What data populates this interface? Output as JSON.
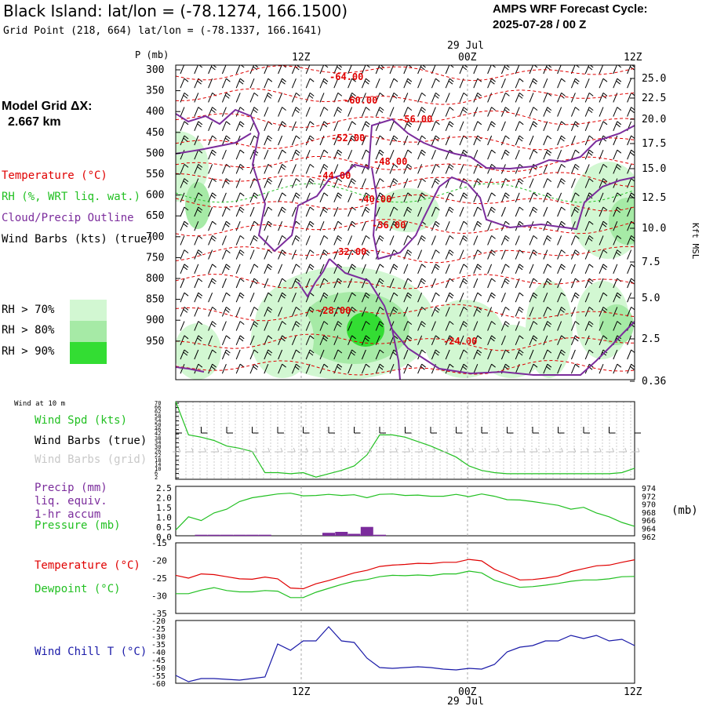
{
  "header": {
    "title": "Black Island:  lat/lon = (-78.1274, 166.1500)",
    "subtitle": "Grid Point (218, 664) lat/lon = (-78.1337, 166.1641)",
    "cycle_line1": "AMPS WRF Forecast Cycle:",
    "cycle_line2": "2025-07-28 / 00  Z",
    "grid_line1": "Model Grid ΔX:",
    "grid_line2": "2.667 km"
  },
  "time_axis": {
    "top_date": "29 Jul",
    "bottom_date": "29 Jul",
    "ticks": [
      "12Z",
      "00Z",
      "12Z"
    ]
  },
  "legend_upper": {
    "temperature": "Temperature (°C)",
    "rh": "RH (%, WRT liq. wat.)",
    "cloud": "Cloud/Precip Outline",
    "wind": "Wind Barbs (kts) (true)",
    "rh70": "RH > 70%",
    "rh80": "RH > 80%",
    "rh90": "RH > 90%"
  },
  "legend_wind": {
    "wind10": "Wind at 10 m",
    "spd": "Wind Spd (kts)",
    "barbs_true": "Wind Barbs (true)",
    "barbs_grid": "Wind Barbs (grid)"
  },
  "legend_precip": {
    "l1": "Precip (mm)",
    "l2": "liq. equiv.",
    "l3": "1-hr accum",
    "l4": "Pressure (mb)",
    "unit_right": "(mb)"
  },
  "legend_temp": {
    "temp": "Temperature (°C)",
    "dew": "Dewpoint (°C)"
  },
  "legend_chill": {
    "chill": "Wind Chill T (°C)"
  },
  "colors": {
    "temperature": "#e00000",
    "rh": "#22c022",
    "cloud": "#7b2c9c",
    "grey": "#bdbdbd",
    "chill": "#1a1aa8",
    "rh70": "#d2f7d2",
    "rh80": "#a6eaa6",
    "rh90": "#33dd33"
  },
  "chart_data": [
    {
      "type": "line",
      "panel": "cross-section",
      "ylabel": "P (mb)",
      "y2label": "Kft MSL",
      "pressure_levels": [
        300,
        350,
        400,
        450,
        500,
        550,
        600,
        650,
        700,
        750,
        800,
        850,
        900,
        950
      ],
      "height_ticks": [
        "25.0",
        "22.5",
        "20.0",
        "17.5",
        "15.0",
        "12.5",
        "10.0",
        "7.5",
        "5.0",
        "2.5",
        "0.36"
      ],
      "isotherm_labels": [
        "-64.00",
        "-60.00",
        "-56.00",
        "-52.00",
        "-48.00",
        "-44.00",
        "-40.00",
        "-36.00",
        "-32.00",
        "-28.00",
        "-24.00"
      ]
    },
    {
      "type": "line",
      "panel": "wind",
      "ylim": [
        0,
        70
      ],
      "y_ticks": [
        "70",
        "66",
        "62",
        "58",
        "54",
        "50",
        "46",
        "42",
        "38",
        "34",
        "30",
        "26",
        "22",
        "18",
        "14",
        "10",
        "6",
        "2"
      ],
      "series": [
        {
          "name": "Wind Spd (kts)",
          "values": [
            70,
            40,
            38,
            35,
            30,
            28,
            25,
            6,
            6,
            5,
            6,
            2,
            5,
            8,
            12,
            22,
            40,
            40,
            38,
            34,
            30,
            25,
            20,
            12,
            8,
            6,
            5,
            5,
            5,
            5,
            5,
            5,
            5,
            5,
            5,
            6,
            10
          ]
        }
      ]
    },
    {
      "type": "bar",
      "panel": "precip-pressure",
      "y_ticks": [
        "2.5",
        "2.0",
        "1.5",
        "1.0",
        "0.5",
        "0.0"
      ],
      "y2_ticks": [
        "974",
        "972",
        "970",
        "968",
        "966",
        "964",
        "962"
      ],
      "series": [
        {
          "name": "Pressure (mb)",
          "values": [
            963.5,
            967,
            966,
            968,
            969,
            971,
            972,
            972.5,
            973,
            973.2,
            972.5,
            972.6,
            972.9,
            972.6,
            972.8,
            972,
            972.9,
            973,
            972.6,
            972.7,
            972.4,
            972.4,
            972.9,
            972.3,
            973,
            972.4,
            971.5,
            971.4,
            971,
            970.5,
            970,
            969,
            969.5,
            968,
            967,
            965.5,
            964.5
          ]
        },
        {
          "name": "Precip (mm)",
          "values": [
            0,
            0,
            0.05,
            0.05,
            0.05,
            0.05,
            0.05,
            0.05,
            0,
            0,
            0,
            0,
            0.15,
            0.2,
            0.1,
            0.45,
            0.05,
            0,
            0,
            0,
            0,
            0,
            0,
            0,
            0,
            0,
            0,
            0,
            0,
            0,
            0,
            0,
            0,
            0,
            0,
            0,
            0
          ]
        }
      ]
    },
    {
      "type": "line",
      "panel": "temperature",
      "ylim": [
        -35,
        -15
      ],
      "y_ticks": [
        "-15",
        "-20",
        "-25",
        "-30",
        "-35"
      ],
      "series": [
        {
          "name": "Temperature (°C)",
          "values": [
            -24.2,
            -25,
            -23.8,
            -24,
            -24.6,
            -25.2,
            -25.3,
            -24.7,
            -25.2,
            -27.8,
            -28,
            -26.6,
            -25.7,
            -24.6,
            -23.5,
            -22.8,
            -21.7,
            -21.3,
            -21.1,
            -20.8,
            -20.9,
            -20.5,
            -20.5,
            -19.7,
            -20.1,
            -22.5,
            -24,
            -25.5,
            -25.4,
            -25,
            -24.4,
            -23.1,
            -22.3,
            -21.5,
            -21.3,
            -20.5,
            -19.8
          ]
        },
        {
          "name": "Dewpoint (°C)",
          "values": [
            -29.4,
            -29.4,
            -28.4,
            -27.7,
            -28.5,
            -28.9,
            -28.9,
            -28.5,
            -28.7,
            -30.5,
            -30.5,
            -29,
            -27.9,
            -26.8,
            -25.9,
            -25.4,
            -24.6,
            -24.2,
            -24.3,
            -24.1,
            -24.3,
            -23.8,
            -23.8,
            -23,
            -23.5,
            -25.6,
            -26.7,
            -27.6,
            -27.4,
            -27,
            -26.5,
            -25.9,
            -25.5,
            -25.5,
            -25.2,
            -24.6,
            -24.5
          ]
        }
      ]
    },
    {
      "type": "line",
      "panel": "wind-chill",
      "ylim": [
        -60,
        -20
      ],
      "y_ticks": [
        "-20",
        "-25",
        "-30",
        "-35",
        "-40",
        "-45",
        "-50",
        "-55",
        "-60"
      ],
      "series": [
        {
          "name": "Wind Chill T (°C)",
          "values": [
            -55,
            -59,
            -57,
            -57,
            -57.5,
            -58,
            -57,
            -56,
            -35,
            -39,
            -33,
            -33,
            -24,
            -33,
            -34,
            -44,
            -50,
            -50.5,
            -50,
            -49.5,
            -50,
            -51,
            -51.5,
            -50.5,
            -51,
            -48,
            -40,
            -37,
            -36,
            -33,
            -33,
            -29.5,
            -31.5,
            -29.5,
            -33,
            -32,
            -36
          ]
        }
      ]
    }
  ]
}
